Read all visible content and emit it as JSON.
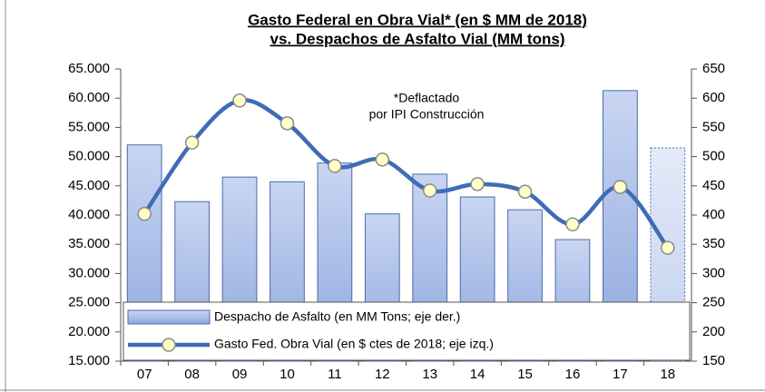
{
  "chart_data": {
    "type": "bar",
    "title": [
      "Gasto Federal en Obra Vial* (en $ MM de 2018)",
      "vs. Despachos de Asfalto Vial (MM tons)"
    ],
    "annotation": [
      "*Deflactado",
      "por IPI Construcción"
    ],
    "categories": [
      "07",
      "08",
      "09",
      "10",
      "11",
      "12",
      "13",
      "14",
      "15",
      "16",
      "17",
      "18"
    ],
    "series": [
      {
        "name": "Despacho de Asfalto (en MM Tons; eje der.)",
        "type": "bar",
        "axis": "y2",
        "color": "#a9bde8",
        "values": [
          520,
          423,
          465,
          457,
          489,
          402,
          470,
          431,
          409,
          358,
          613,
          515
        ]
      },
      {
        "name": "Gasto Fed. Obra Vial (en $ ctes de 2018; eje izq.)",
        "type": "line",
        "axis": "y",
        "color": "#3f6cb5",
        "values": [
          40200,
          52400,
          59600,
          55700,
          48400,
          49500,
          44200,
          45300,
          44000,
          38400,
          44800,
          34400
        ]
      }
    ],
    "ylim": [
      15000,
      65000
    ],
    "yticks": [
      {
        "value": 15000,
        "label": "15.000"
      },
      {
        "value": 20000,
        "label": "20.000"
      },
      {
        "value": 25000,
        "label": "25.000"
      },
      {
        "value": 30000,
        "label": "30.000"
      },
      {
        "value": 35000,
        "label": "35.000"
      },
      {
        "value": 40000,
        "label": "40.000"
      },
      {
        "value": 45000,
        "label": "45.000"
      },
      {
        "value": 50000,
        "label": "50.000"
      },
      {
        "value": 55000,
        "label": "55.000"
      },
      {
        "value": 60000,
        "label": "60.000"
      },
      {
        "value": 65000,
        "label": "65.000"
      }
    ],
    "y2lim": [
      150,
      650
    ],
    "y2ticks": [
      150,
      200,
      250,
      300,
      350,
      400,
      450,
      500,
      550,
      600,
      650
    ]
  }
}
